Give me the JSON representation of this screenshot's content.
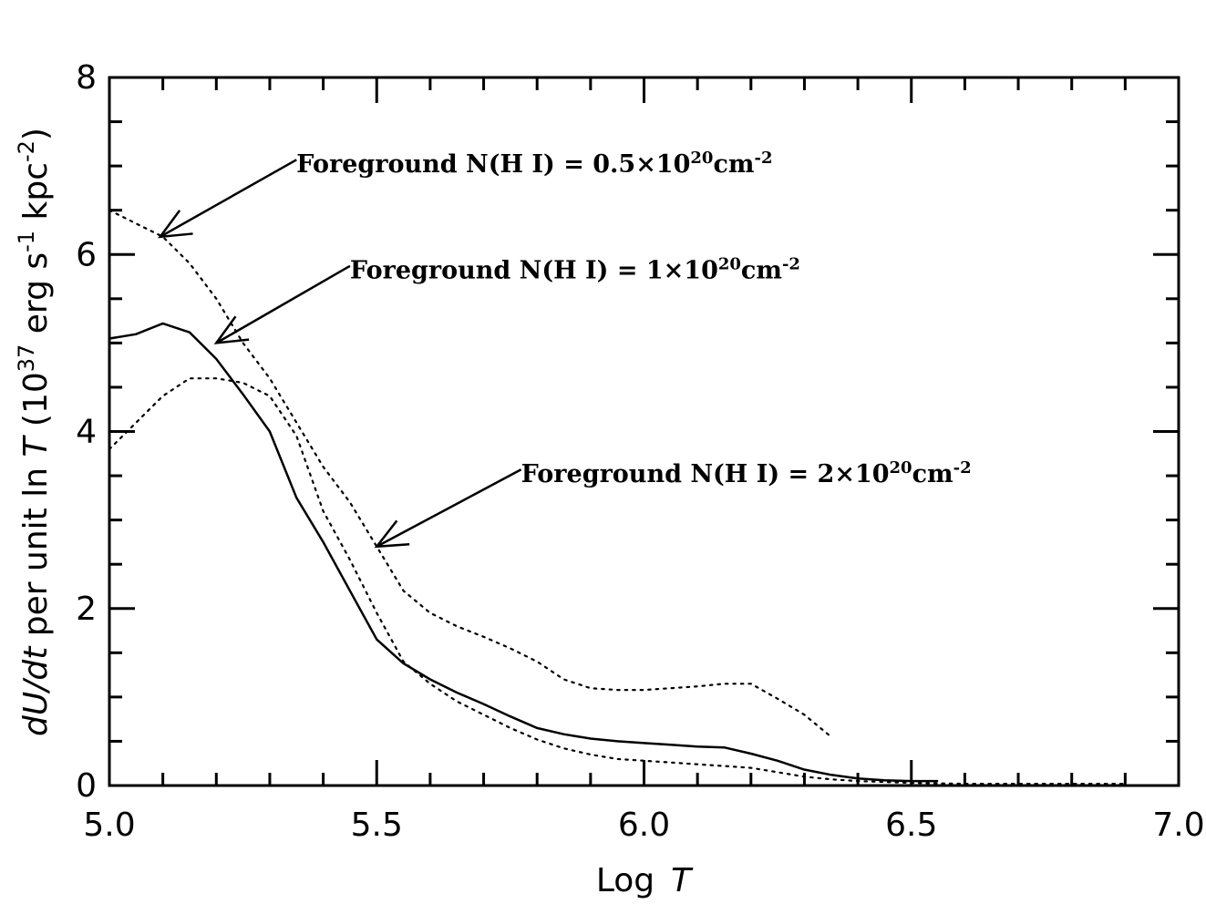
{
  "chart_data": {
    "type": "line",
    "xlabel": "Log T",
    "xlabel_main": "Log",
    "xlabel_var": "T",
    "ylabel": "dU/dt per unit ln T (10^37 erg s^-1 kpc^-2)",
    "ylabel_parts": {
      "var1": "dU/dt",
      "mid": " per unit ln ",
      "var2": "T",
      "open": " (10",
      "exp1": "37",
      "unit1": " erg s",
      "exp2": "-1",
      "unit2": " kpc",
      "exp3": "-2",
      "close": ")"
    },
    "xlim": [
      5.0,
      7.0
    ],
    "ylim": [
      0,
      8
    ],
    "xticks": [
      "5.0",
      "5.5",
      "6.0",
      "6.5",
      "7.0"
    ],
    "yticks": [
      "0",
      "2",
      "4",
      "6",
      "8"
    ],
    "grid": false,
    "series": [
      {
        "style": "dotted",
        "x": [
          5.0,
          5.05,
          5.1,
          5.15,
          5.2,
          5.25,
          5.3,
          5.35,
          5.4,
          5.45,
          5.5,
          5.55,
          5.6,
          5.65,
          5.7,
          5.75,
          5.8,
          5.85,
          5.9,
          5.95,
          6.0,
          6.05,
          6.1,
          6.15,
          6.2,
          6.25,
          6.3,
          6.35
        ],
        "values": [
          6.5,
          6.35,
          6.2,
          5.9,
          5.5,
          5.0,
          4.6,
          4.1,
          3.6,
          3.2,
          2.7,
          2.2,
          1.95,
          1.8,
          1.68,
          1.55,
          1.4,
          1.2,
          1.1,
          1.08,
          1.08,
          1.1,
          1.12,
          1.15,
          1.15,
          0.98,
          0.8,
          0.55
        ]
      },
      {
        "style": "solid",
        "x": [
          5.0,
          5.05,
          5.1,
          5.15,
          5.2,
          5.25,
          5.3,
          5.35,
          5.4,
          5.45,
          5.5,
          5.55,
          5.6,
          5.65,
          5.7,
          5.75,
          5.8,
          5.85,
          5.9,
          5.95,
          6.0,
          6.05,
          6.1,
          6.15,
          6.2,
          6.25,
          6.3,
          6.35,
          6.4,
          6.45,
          6.5,
          6.55
        ],
        "values": [
          5.05,
          5.1,
          5.22,
          5.12,
          4.82,
          4.42,
          4.0,
          3.25,
          2.75,
          2.2,
          1.65,
          1.38,
          1.2,
          1.05,
          0.92,
          0.78,
          0.65,
          0.58,
          0.53,
          0.5,
          0.48,
          0.46,
          0.44,
          0.43,
          0.36,
          0.28,
          0.18,
          0.12,
          0.08,
          0.06,
          0.05,
          0.05
        ]
      },
      {
        "style": "dotted",
        "x": [
          5.0,
          5.05,
          5.1,
          5.15,
          5.2,
          5.25,
          5.3,
          5.35,
          5.4,
          5.45,
          5.5,
          5.55,
          5.6,
          5.65,
          5.7,
          5.75,
          5.8,
          5.85,
          5.9,
          5.95,
          6.0,
          6.05,
          6.1,
          6.15,
          6.2,
          6.25,
          6.3,
          6.35,
          6.4,
          6.5,
          6.6,
          6.7,
          6.8,
          6.9
        ],
        "values": [
          3.8,
          4.1,
          4.4,
          4.6,
          4.6,
          4.55,
          4.4,
          3.95,
          3.1,
          2.55,
          1.95,
          1.4,
          1.15,
          0.95,
          0.8,
          0.65,
          0.52,
          0.42,
          0.35,
          0.3,
          0.28,
          0.26,
          0.24,
          0.22,
          0.2,
          0.15,
          0.1,
          0.07,
          0.05,
          0.03,
          0.02,
          0.02,
          0.02,
          0.02
        ]
      }
    ],
    "annotations": [
      {
        "prefix": "Foreground N(H I) = 0.5×10",
        "exp": "20",
        "unit": "cm",
        "unit_exp": "-2",
        "text_at": [
          5.35,
          6.93
        ],
        "arrow_from": [
          5.35,
          7.07
        ],
        "arrow_to": [
          5.095,
          6.2
        ]
      },
      {
        "prefix": "Foreground N(H I) = 1×10",
        "exp": "20",
        "unit": "cm",
        "unit_exp": "-2",
        "text_at": [
          5.45,
          5.73
        ],
        "arrow_from": [
          5.45,
          5.87
        ],
        "arrow_to": [
          5.2,
          5.0
        ]
      },
      {
        "prefix": "Foreground N(H I) = 2×10",
        "exp": "20",
        "unit": "cm",
        "unit_exp": "-2",
        "text_at": [
          5.77,
          3.43
        ],
        "arrow_from": [
          5.77,
          3.57
        ],
        "arrow_to": [
          5.5,
          2.7
        ]
      }
    ]
  }
}
